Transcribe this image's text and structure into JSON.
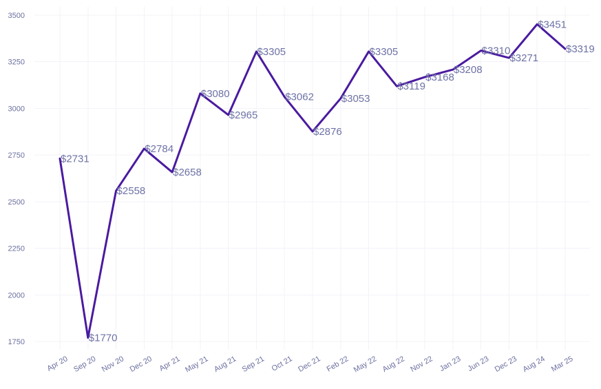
{
  "chart_data": {
    "type": "line",
    "title": "",
    "xlabel": "",
    "ylabel": "",
    "categories": [
      "Apr 20",
      "Sep 20",
      "Nov 20",
      "Dec 20",
      "Apr 21",
      "May 21",
      "Aug 21",
      "Sep 21",
      "Oct 21",
      "Dec 21",
      "Feb 22",
      "May 22",
      "Aug 22",
      "Nov 22",
      "Jan 23",
      "Jun 23",
      "Dec 23",
      "Aug 24",
      "Mar 25"
    ],
    "series": [
      {
        "values": [
          2731,
          1770,
          2558,
          2784,
          2658,
          3080,
          2965,
          3305,
          3062,
          2876,
          3053,
          3305,
          3119,
          3168,
          3208,
          3310,
          3271,
          3451,
          3319
        ]
      }
    ],
    "data_labels": [
      "$2731",
      "$1770",
      "$2558",
      "$2784",
      "$2658",
      "$3080",
      "$2965",
      "$3305",
      "$3062",
      "$2876",
      "$3053",
      "$3305",
      "$3119",
      "$3168",
      "$3208",
      "$3310",
      "$3271",
      "$3451",
      "$3319"
    ],
    "y_ticks": [
      "1750",
      "2000",
      "2250",
      "2500",
      "2750",
      "3000",
      "3250",
      "3500"
    ],
    "ylim": [
      1750,
      3500
    ],
    "grid": true,
    "legend": "none",
    "line_color": "#4a1aa0",
    "label_color": "#6d72a5"
  }
}
